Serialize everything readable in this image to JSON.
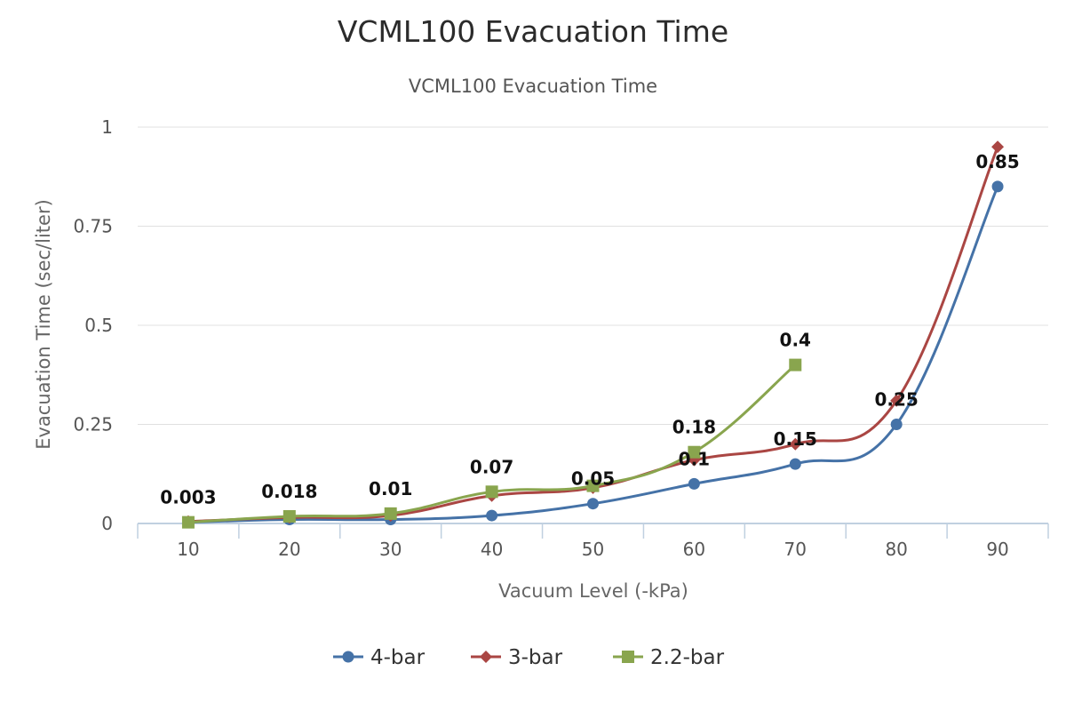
{
  "chart_data": {
    "type": "line",
    "title": "VCML100 Evacuation Time",
    "subtitle": "VCML100 Evacuation Time",
    "xlabel": "Vacuum Level (-kPa)",
    "ylabel": "Evacuation Time (sec/liter)",
    "categories": [
      "10",
      "20",
      "30",
      "40",
      "50",
      "60",
      "70",
      "80",
      "90"
    ],
    "y_ticks": [
      "0",
      "0.25",
      "0.5",
      "0.75",
      "1"
    ],
    "ylim": [
      0,
      1
    ],
    "grid": true,
    "legend": "bottom-center",
    "smooth": true,
    "series": [
      {
        "name": "4-bar",
        "color": "#4572a7",
        "marker": "circle",
        "values": [
          0.003,
          0.01,
          0.01,
          0.02,
          0.05,
          0.1,
          0.15,
          0.25,
          0.85
        ]
      },
      {
        "name": "3-bar",
        "color": "#aa4643",
        "marker": "diamond",
        "values": [
          0.005,
          0.015,
          0.02,
          0.07,
          0.09,
          0.16,
          0.2,
          0.31,
          0.95
        ]
      },
      {
        "name": "2.2-bar",
        "color": "#89a54e",
        "marker": "square",
        "values": [
          0.003,
          0.018,
          0.025,
          0.08,
          0.095,
          0.18,
          0.4,
          null,
          null
        ]
      }
    ],
    "data_labels": [
      "0.003",
      "0.018",
      "0.01",
      "0.07",
      "0.05",
      "0.18",
      "0.1",
      "0.4",
      "0.15",
      "0.25",
      "0.85"
    ]
  }
}
